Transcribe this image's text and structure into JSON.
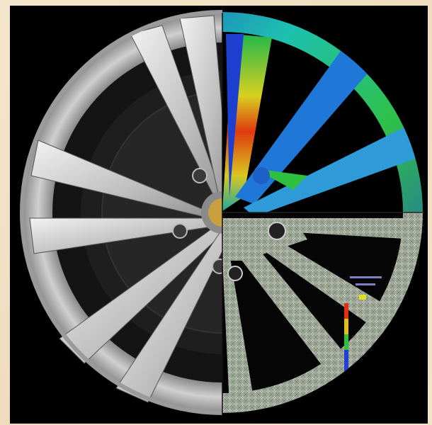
{
  "image": {
    "subject": "alloy wheel",
    "quadrants": {
      "left-half": "photo-render",
      "top-right": "stress-heatmap",
      "bottom-right": "fea-mesh"
    },
    "colors": {
      "background": "#000000",
      "frame": "#f1e2c7",
      "rim-silver": "#c9c9c9",
      "spoke-dark": "#2a2a2a",
      "heat-low": "#1e3fd0",
      "heat-mid": "#18c060",
      "heat-high": "#e03010",
      "mesh": "#b8c2b0"
    }
  }
}
